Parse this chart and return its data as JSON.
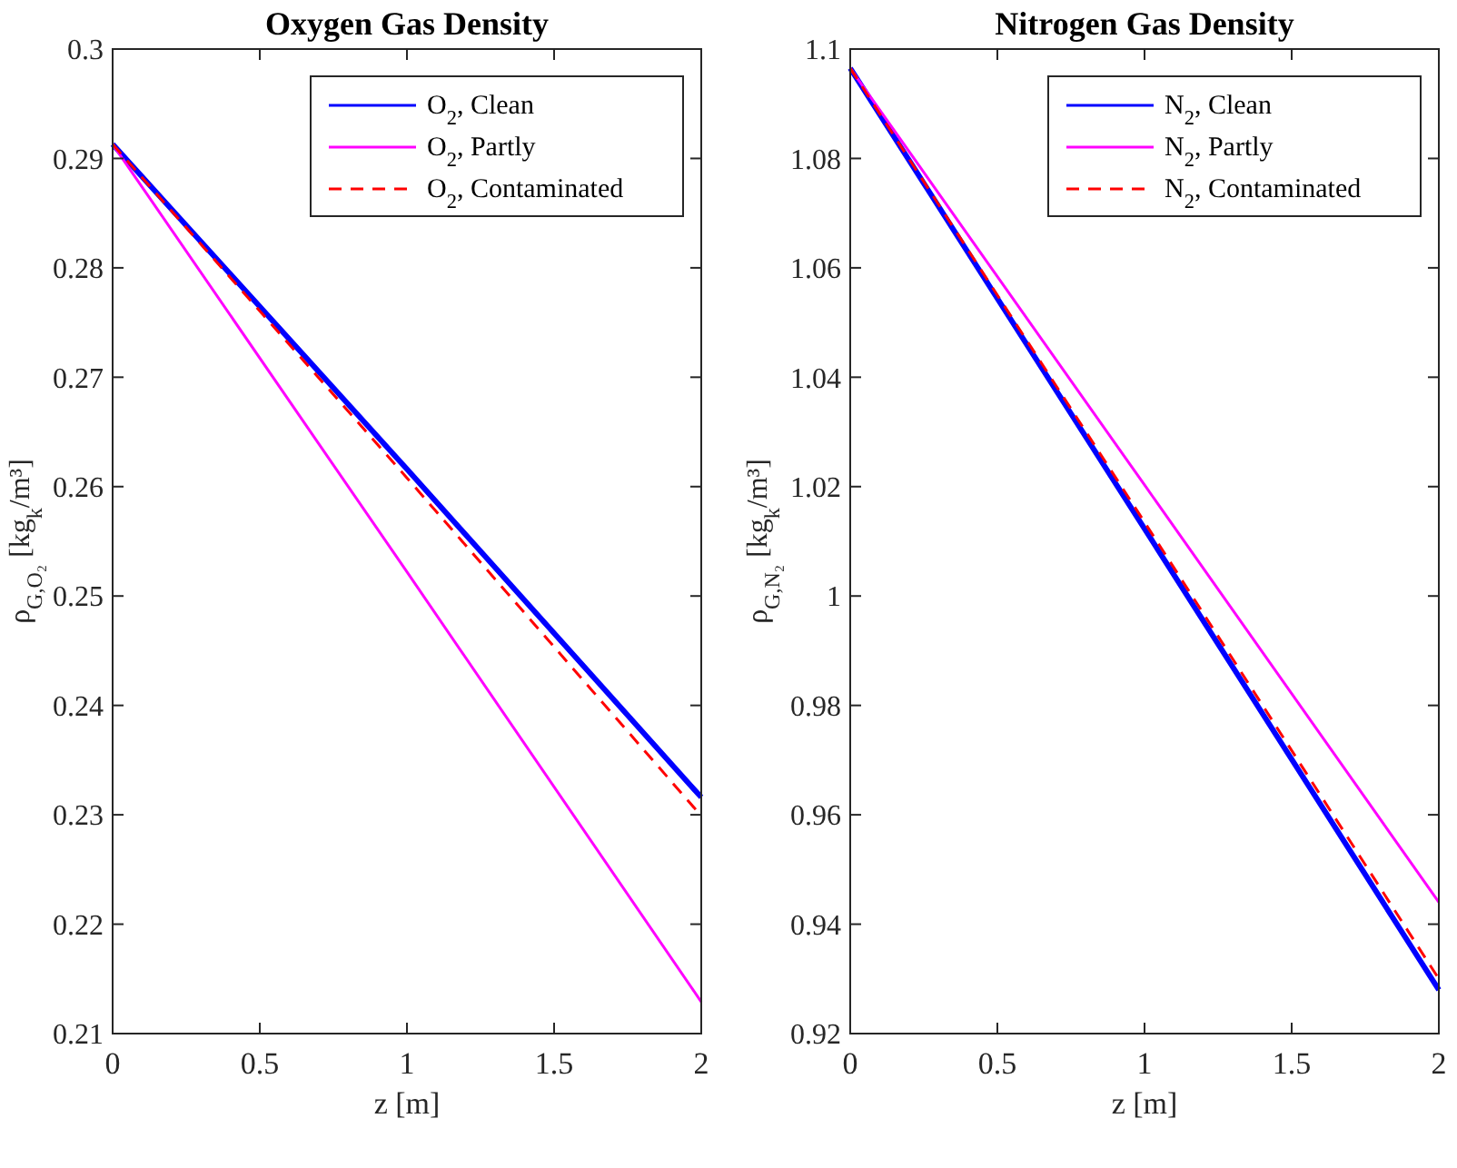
{
  "chart_data": [
    {
      "type": "line",
      "title": "Oxygen Gas Density",
      "xlabel": "z [m]",
      "ylabel": "ρ$_{G,O₂}$ [kg$_{k}$/m³]",
      "x": [
        0,
        1,
        2
      ],
      "xlim": [
        0,
        2
      ],
      "xticks": [
        0,
        0.5,
        1,
        1.5,
        2
      ],
      "ylim": [
        0.21,
        0.3
      ],
      "yticks": [
        0.21,
        0.22,
        0.23,
        0.24,
        0.25,
        0.26,
        0.27,
        0.28,
        0.29,
        0.3
      ],
      "legend": "top right",
      "grid": false,
      "series": [
        {
          "name": "O$_{2}$, Clean",
          "color": "#0000ff",
          "values": [
            0.2913,
            0.2616,
            0.2316
          ]
        },
        {
          "name": "O$_{2}$, Partly",
          "color": "#ff00ff",
          "values": [
            0.2913,
            0.2522,
            0.2129
          ]
        },
        {
          "name": "O$_{2}$, Contaminated",
          "color": "#ff0000",
          "line_style": "dashed",
          "values": [
            0.2913,
            0.2608,
            0.2299
          ]
        }
      ]
    },
    {
      "type": "line",
      "title": "Nitrogen Gas Density",
      "xlabel": "z [m]",
      "ylabel": "ρ$_{G,N₂}$ [kg$_{k}$/m³]",
      "x": [
        0,
        1,
        2
      ],
      "xlim": [
        0,
        2
      ],
      "xticks": [
        0,
        0.5,
        1,
        1.5,
        2
      ],
      "ylim": [
        0.92,
        1.1
      ],
      "yticks": [
        0.92,
        0.94,
        0.96,
        0.98,
        1,
        1.02,
        1.04,
        1.06,
        1.08,
        1.1
      ],
      "legend": "top right",
      "grid": false,
      "series": [
        {
          "name": "N$_{2}$, Clean",
          "color": "#0000ff",
          "values": [
            1.0965,
            1.0123,
            0.928
          ]
        },
        {
          "name": "N$_{2}$, Partly",
          "color": "#ff00ff",
          "values": [
            1.0965,
            1.0203,
            0.944
          ]
        },
        {
          "name": "N$_{2}$, Contaminated",
          "color": "#ff0000",
          "line_style": "dashed",
          "values": [
            1.0965,
            1.0135,
            0.93
          ]
        }
      ]
    }
  ]
}
